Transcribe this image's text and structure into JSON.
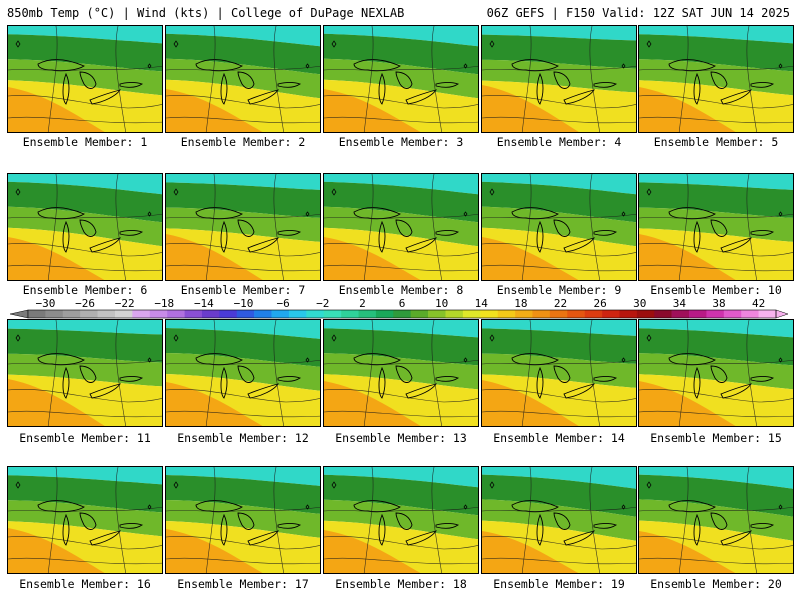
{
  "header": {
    "left": "850mb Temp (°C) | Wind (kts) | College of DuPage NEXLAB",
    "right": "06Z GEFS | F150 Valid: 12Z SAT JUN 14 2025"
  },
  "panels": [
    {
      "label": "Ensemble Member: 1",
      "warmth": 0.55
    },
    {
      "label": "Ensemble Member: 2",
      "warmth": 0.45
    },
    {
      "label": "Ensemble Member: 3",
      "warmth": 0.45
    },
    {
      "label": "Ensemble Member: 4",
      "warmth": 0.65
    },
    {
      "label": "Ensemble Member: 5",
      "warmth": 0.55
    },
    {
      "label": "Ensemble Member: 6",
      "warmth": 0.45
    },
    {
      "label": "Ensemble Member: 7",
      "warmth": 0.6
    },
    {
      "label": "Ensemble Member: 8",
      "warmth": 0.45
    },
    {
      "label": "Ensemble Member: 9",
      "warmth": 0.45
    },
    {
      "label": "Ensemble Member: 10",
      "warmth": 0.6
    },
    {
      "label": "Ensemble Member: 11",
      "warmth": 0.65
    },
    {
      "label": "Ensemble Member: 12",
      "warmth": 0.5
    },
    {
      "label": "Ensemble Member: 13",
      "warmth": 0.55
    },
    {
      "label": "Ensemble Member: 14",
      "warmth": 0.6
    },
    {
      "label": "Ensemble Member: 15",
      "warmth": 0.55
    },
    {
      "label": "Ensemble Member: 16",
      "warmth": 0.55
    },
    {
      "label": "Ensemble Member: 17",
      "warmth": 0.5
    },
    {
      "label": "Ensemble Member: 18",
      "warmth": 0.45
    },
    {
      "label": "Ensemble Member: 19",
      "warmth": 0.4
    },
    {
      "label": "Ensemble Member: 20",
      "warmth": 0.4
    }
  ],
  "colorbar": {
    "ticks": [
      "−30",
      "−26",
      "−22",
      "−18",
      "−14",
      "−10",
      "−6",
      "−2",
      "2",
      "6",
      "10",
      "14",
      "18",
      "22",
      "26",
      "30",
      "34",
      "38",
      "42"
    ],
    "colors": [
      "#7a7a7a",
      "#8c8c8c",
      "#9e9e9e",
      "#b0b0b0",
      "#c2c2c2",
      "#d3d3d3",
      "#d9a6ee",
      "#c78be8",
      "#b070e0",
      "#8a4fd4",
      "#6a3ccc",
      "#4a3bd6",
      "#2f5ae0",
      "#1f80e8",
      "#20a8ee",
      "#28c8ea",
      "#30dcd0",
      "#38e0b8",
      "#2fd29a",
      "#26bf7c",
      "#1aa85a",
      "#2f9b3c",
      "#5aab2a",
      "#86c22a",
      "#b4d62a",
      "#dfe82a",
      "#f2e21e",
      "#f4c918",
      "#f2ad16",
      "#ef9114",
      "#ea7412",
      "#e55610",
      "#dd3c10",
      "#cf2410",
      "#b8150e",
      "#9c0e0e",
      "#8a0a2c",
      "#a0105a",
      "#b81a86",
      "#cf33ad",
      "#e25acb",
      "#ef86de",
      "#f7b2ee"
    ]
  },
  "colors": {
    "green_dark": "#2a8f2a",
    "green": "#6fb82a",
    "yellow": "#f0e020",
    "orange": "#f4a614",
    "cyan": "#30d8c8"
  }
}
